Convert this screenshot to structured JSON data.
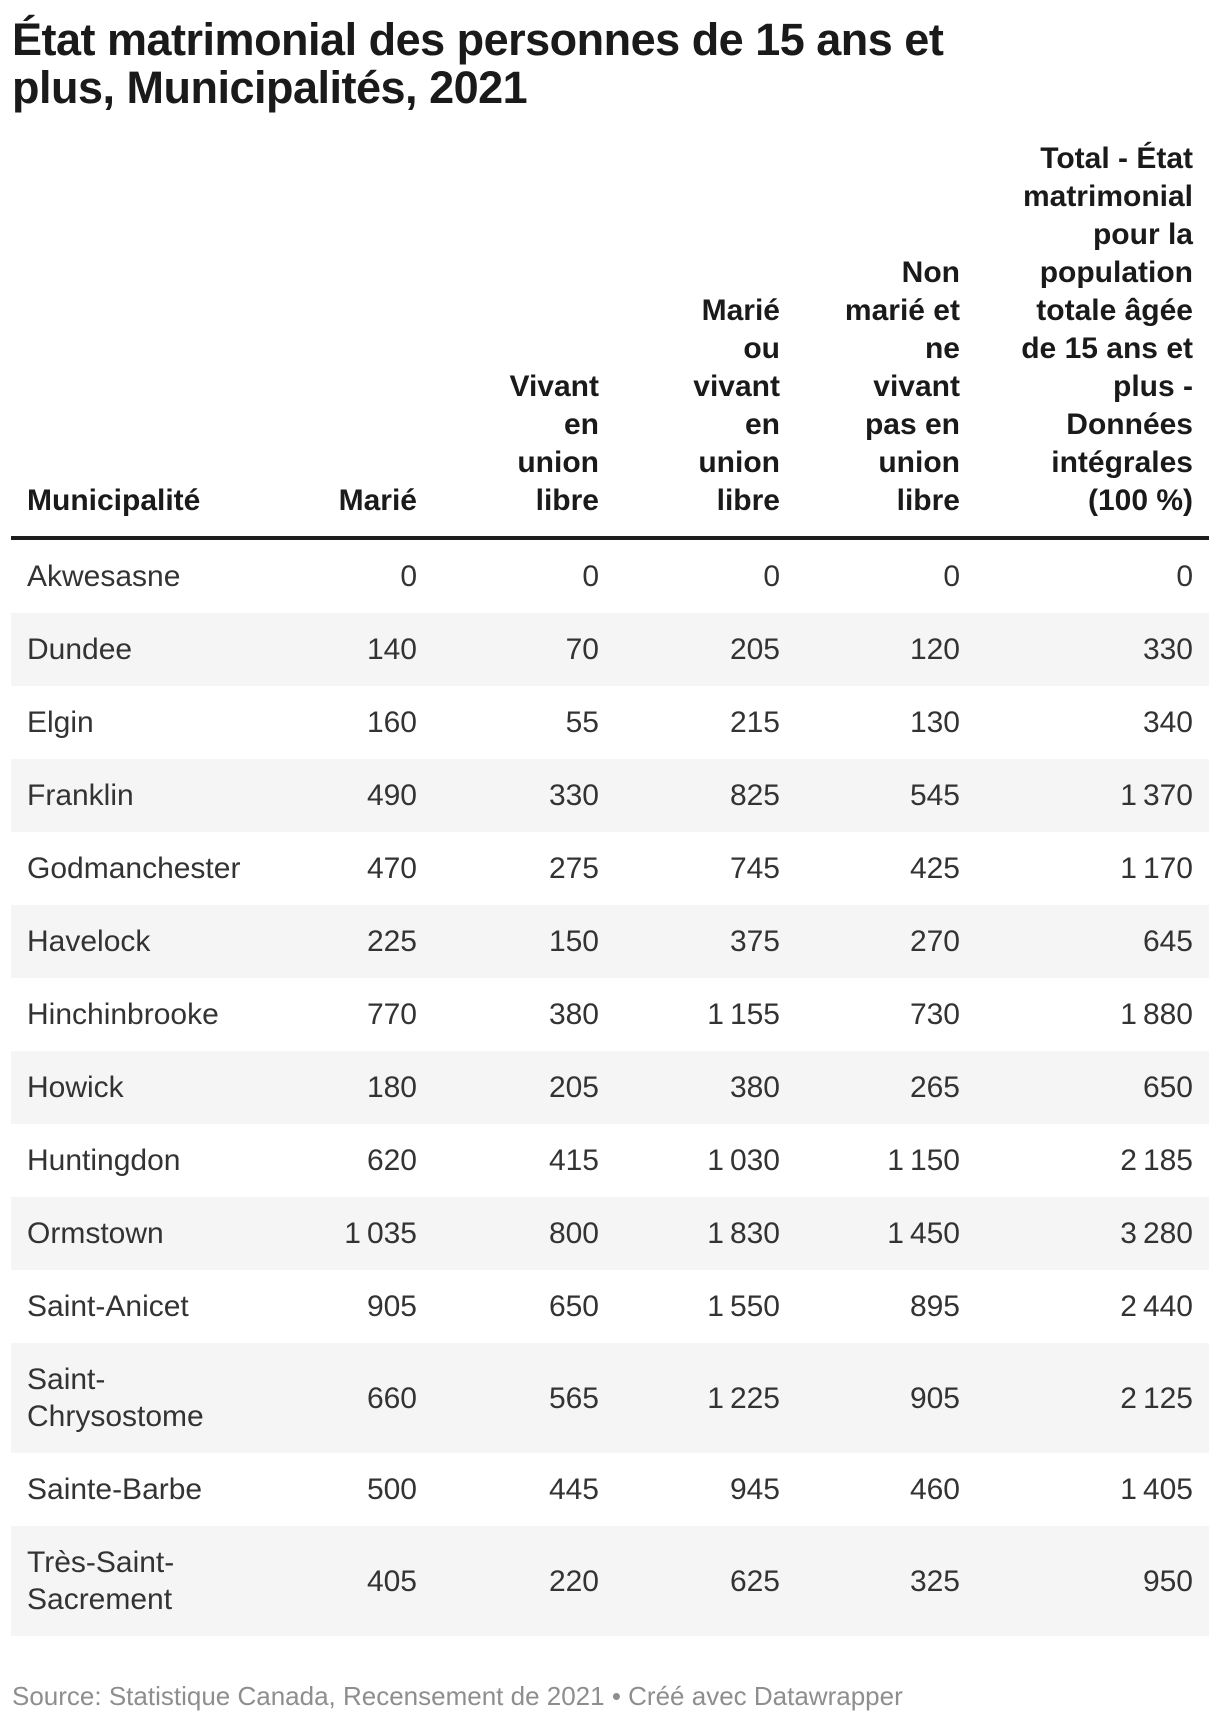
{
  "chart_data": {
    "type": "table",
    "title": "État matrimonial des personnes de 15 ans et plus, Municipalités, 2021",
    "columns": [
      "Municipalité",
      "Marié",
      "Vivant en union libre",
      "Marié ou vivant en union libre",
      "Non marié et ne vivant pas en union libre",
      "Total - État matrimonial pour la population totale âgée de 15 ans et plus - Données intégrales (100 %)"
    ],
    "rows": [
      [
        "Akwesasne",
        0,
        0,
        0,
        0,
        0
      ],
      [
        "Dundee",
        140,
        70,
        205,
        120,
        330
      ],
      [
        "Elgin",
        160,
        55,
        215,
        130,
        340
      ],
      [
        "Franklin",
        490,
        330,
        825,
        545,
        1370
      ],
      [
        "Godmanchester",
        470,
        275,
        745,
        425,
        1170
      ],
      [
        "Havelock",
        225,
        150,
        375,
        270,
        645
      ],
      [
        "Hinchinbrooke",
        770,
        380,
        1155,
        730,
        1880
      ],
      [
        "Howick",
        180,
        205,
        380,
        265,
        650
      ],
      [
        "Huntingdon",
        620,
        415,
        1030,
        1150,
        2185
      ],
      [
        "Ormstown",
        1035,
        800,
        1830,
        1450,
        3280
      ],
      [
        "Saint-Anicet",
        905,
        650,
        1550,
        895,
        2440
      ],
      [
        "Saint-Chrysostome",
        660,
        565,
        1225,
        905,
        2125
      ],
      [
        "Sainte-Barbe",
        500,
        445,
        945,
        460,
        1405
      ],
      [
        "Très-Saint-Sacrement",
        405,
        220,
        625,
        325,
        950
      ]
    ],
    "layout_hints": {
      "striped_rows": true,
      "numeric_align": "right",
      "header_align": "bottom-right",
      "thousands_separator": "narrow space"
    }
  },
  "display": {
    "header_labels": [
      "Municipalité",
      "Marié",
      "Vivant\nen\nunion\nlibre",
      "Marié\nou\nvivant\nen\nunion\nlibre",
      "Non\nmarié et\nne\nvivant\npas en\nunion\nlibre",
      "Total - État\nmatrimonial\npour la\npopulation\ntotale âgée\nde 15 ans et\nplus -\nDonnées\nintégrales\n(100 %)"
    ]
  },
  "footer": {
    "text": "Source: Statistique Canada, Recensement de 2021 • Créé avec Datawrapper"
  },
  "colors": {
    "title_text": "#1a1a1a",
    "body_text": "#333333",
    "row_stripe": "#f5f5f5",
    "header_border": "#1d1d1d",
    "footer_text": "#8e8e8e",
    "background": "#ffffff"
  }
}
